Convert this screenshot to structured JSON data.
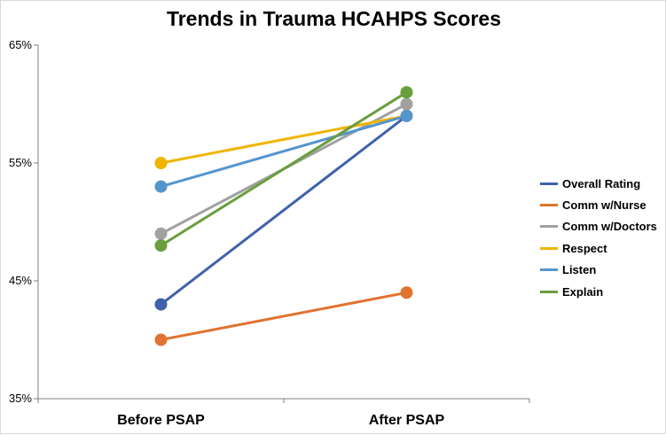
{
  "chart_data": {
    "type": "line",
    "title": "Trends in Trauma HCAHPS Scores",
    "categories": [
      "Before PSAP",
      "After PSAP"
    ],
    "ylim": [
      0.35,
      0.65
    ],
    "yticks": [
      {
        "value": 0.35,
        "label": "35%"
      },
      {
        "value": 0.45,
        "label": "45%"
      },
      {
        "value": 0.55,
        "label": "55%"
      },
      {
        "value": 0.65,
        "label": "65%"
      }
    ],
    "grid": false,
    "legend_position": "right",
    "series": [
      {
        "name": "Overall Rating",
        "color": "#3f62aa",
        "values": [
          0.43,
          0.59
        ]
      },
      {
        "name": "Comm w/Nurse",
        "color": "#e0732f",
        "values": [
          0.4,
          0.44
        ]
      },
      {
        "name": "Comm w/Doctors",
        "color": "#a1a1a1",
        "values": [
          0.49,
          0.6
        ]
      },
      {
        "name": "Respect",
        "color": "#f0b400",
        "values": [
          0.55,
          0.59
        ]
      },
      {
        "name": "Listen",
        "color": "#5595cd",
        "values": [
          0.53,
          0.59
        ]
      },
      {
        "name": "Explain",
        "color": "#6a9e3c",
        "values": [
          0.48,
          0.61
        ]
      }
    ]
  }
}
